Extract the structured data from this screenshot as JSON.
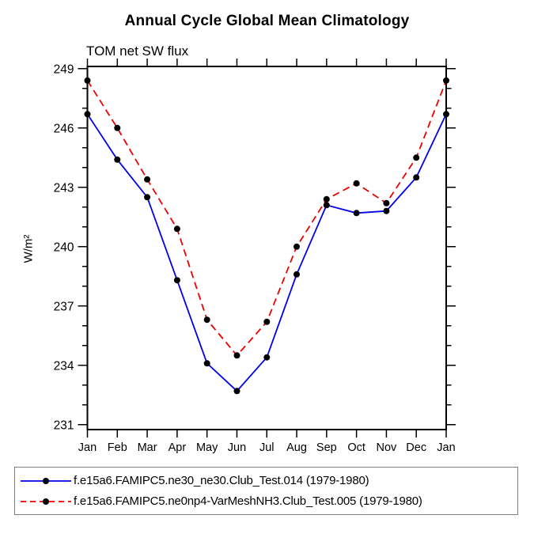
{
  "chart_data": {
    "type": "line",
    "title": "Annual Cycle Global Mean Climatology",
    "subtitle": "TOM net SW flux",
    "ylabel": "W/m²",
    "categories": [
      "Jan",
      "Feb",
      "Mar",
      "Apr",
      "May",
      "Jun",
      "Jul",
      "Aug",
      "Sep",
      "Oct",
      "Nov",
      "Dec",
      "Jan"
    ],
    "series": [
      {
        "name": "f.e15a6.FAMIPC5.ne30_ne30.Club_Test.014 (1979-1980)",
        "color": "#0000ee",
        "style": "solid",
        "marker": "filled-circle",
        "marker_color": "#000000",
        "values": [
          246.7,
          244.4,
          242.5,
          238.3,
          234.1,
          232.7,
          234.4,
          238.6,
          242.1,
          241.7,
          241.8,
          243.5,
          246.7
        ]
      },
      {
        "name": "f.e15a6.FAMIPC5.ne0np4-VarMeshNH3.Club_Test.005 (1979-1980)",
        "color": "#ee0000",
        "style": "dashed",
        "marker": "filled-circle",
        "marker_color": "#000000",
        "values": [
          248.4,
          246.0,
          243.4,
          240.9,
          236.3,
          234.5,
          236.2,
          240.0,
          242.4,
          243.2,
          242.2,
          244.5,
          248.4
        ]
      }
    ],
    "ylim": [
      230.75,
      249.11
    ],
    "yticks_major": [
      231,
      234,
      237,
      240,
      243,
      246,
      249
    ],
    "yticks_minor_step": 1,
    "grid": false,
    "legend_position": "bottom",
    "frame_color": "#000000"
  }
}
